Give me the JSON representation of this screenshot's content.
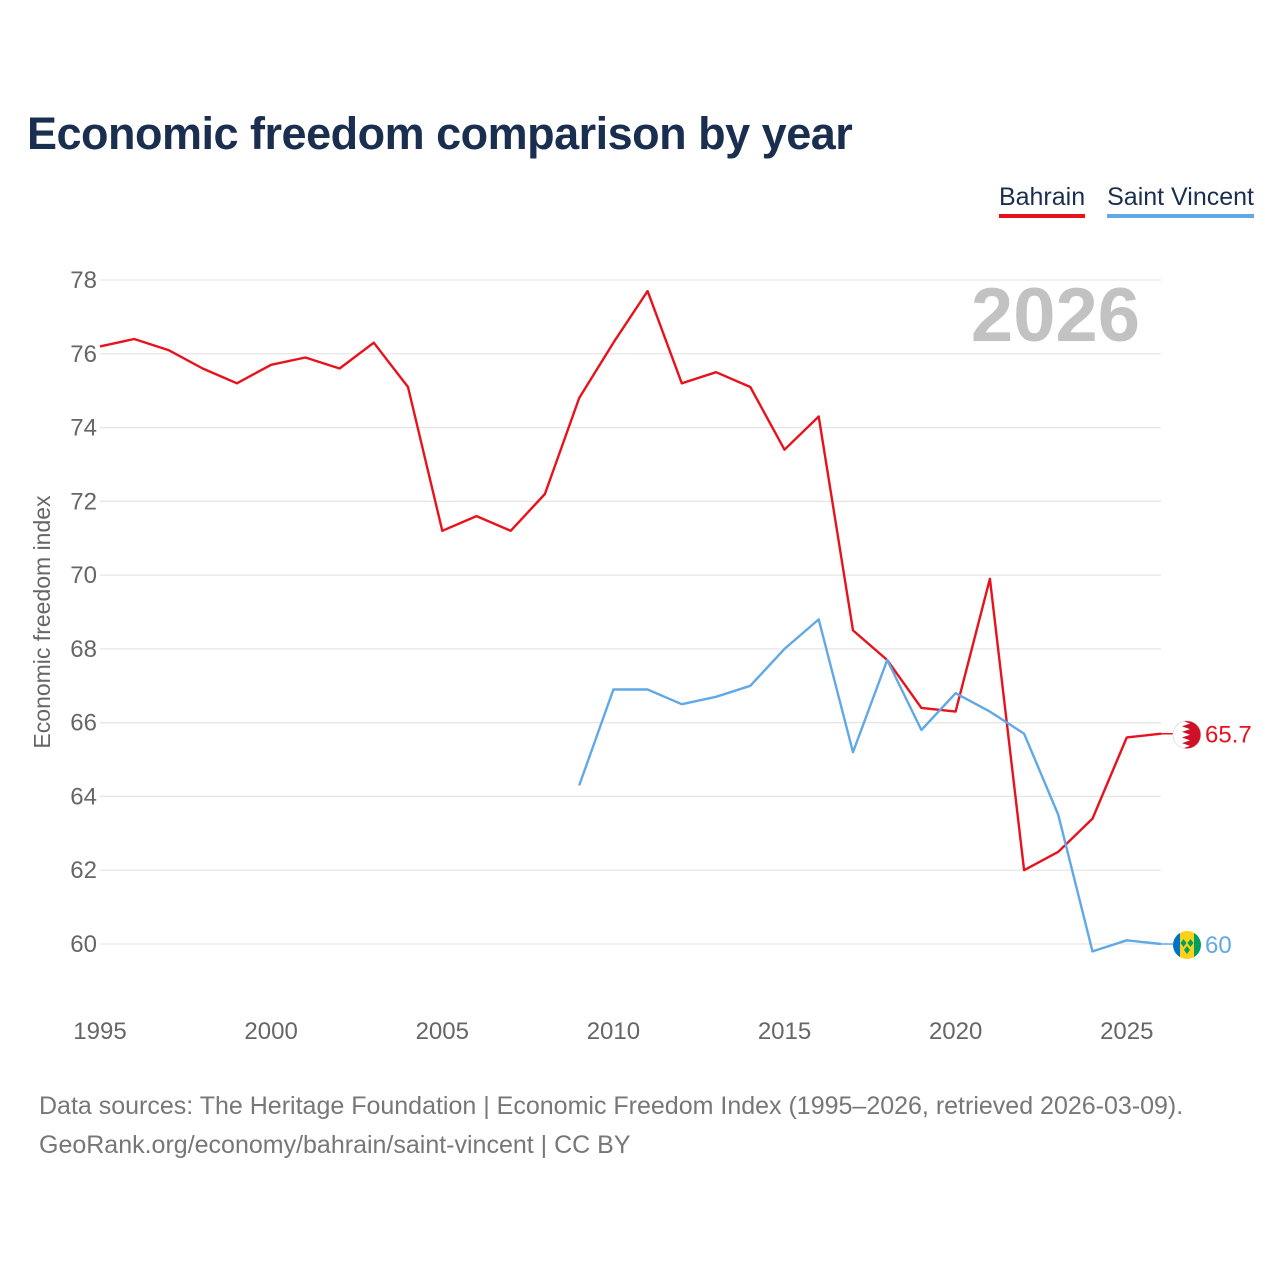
{
  "chart_data": {
    "type": "line",
    "title": "Economic freedom comparison by year",
    "ylabel": "Economic freedom index",
    "xlabel": "",
    "xlim": [
      1995,
      2026
    ],
    "ylim": [
      59,
      78.5
    ],
    "x_ticks": [
      1995,
      2000,
      2005,
      2010,
      2015,
      2020,
      2025
    ],
    "y_ticks": [
      60,
      62,
      64,
      66,
      68,
      70,
      72,
      74,
      76,
      78
    ],
    "watermark_year": "2026",
    "series": [
      {
        "name": "Bahrain",
        "color": "#e8121c",
        "x": [
          1995,
          1996,
          1997,
          1998,
          1999,
          2000,
          2001,
          2002,
          2003,
          2004,
          2005,
          2006,
          2007,
          2008,
          2009,
          2010,
          2011,
          2012,
          2013,
          2014,
          2015,
          2016,
          2017,
          2018,
          2019,
          2020,
          2021,
          2022,
          2023,
          2024,
          2025,
          2026
        ],
        "values": [
          76.2,
          76.4,
          76.1,
          75.6,
          75.2,
          75.7,
          75.9,
          75.6,
          76.3,
          75.1,
          71.2,
          71.6,
          71.2,
          72.2,
          74.8,
          76.3,
          77.7,
          75.2,
          75.5,
          75.1,
          73.4,
          74.3,
          68.5,
          67.7,
          66.4,
          66.3,
          69.9,
          62.0,
          62.5,
          63.4,
          65.6,
          65.7
        ],
        "end_label": "65.7"
      },
      {
        "name": "Saint Vincent",
        "color": "#61a8e6",
        "x": [
          2009,
          2010,
          2011,
          2012,
          2013,
          2014,
          2015,
          2016,
          2017,
          2018,
          2019,
          2020,
          2021,
          2022,
          2023,
          2024,
          2025,
          2026
        ],
        "values": [
          64.3,
          66.9,
          66.9,
          66.5,
          66.7,
          67.0,
          68.0,
          68.8,
          65.2,
          67.7,
          65.8,
          66.8,
          66.3,
          65.7,
          63.5,
          59.8,
          60.1,
          60.0
        ],
        "end_label": "60"
      }
    ]
  },
  "source": {
    "line1": "Data sources: The Heritage Foundation | Economic Freedom Index (1995–2026, retrieved 2026-03-09).",
    "line2": "GeoRank.org/economy/bahrain/saint-vincent | CC BY"
  }
}
